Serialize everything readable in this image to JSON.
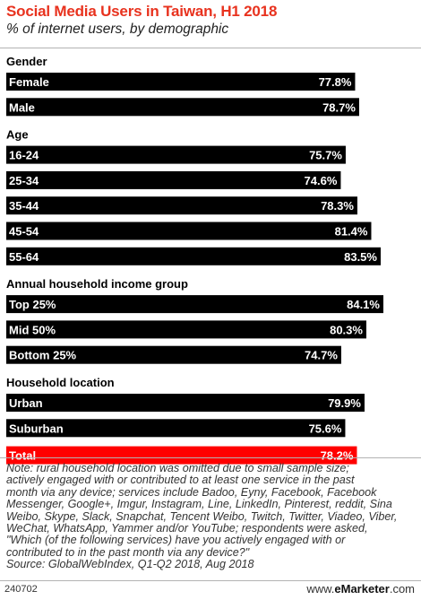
{
  "title": "Social Media Users in Taiwan, H1 2018",
  "subtitle": "% of internet users, by demographic",
  "chart_data": {
    "type": "bar",
    "orientation": "horizontal",
    "title": "Social Media Users in Taiwan, H1 2018",
    "subtitle": "% of internet users, by demographic",
    "value_unit": "%",
    "xlim": [
      0,
      85.5
    ],
    "grid": false,
    "legend": "none",
    "bar_color": "#000000",
    "highlight_color": "#ff0000",
    "groups": [
      {
        "name": "Gender",
        "items": [
          {
            "label": "Female",
            "value": 77.8,
            "display": "77.8%"
          },
          {
            "label": "Male",
            "value": 78.7,
            "display": "78.7%"
          }
        ]
      },
      {
        "name": "Age",
        "items": [
          {
            "label": "16-24",
            "value": 75.7,
            "display": "75.7%"
          },
          {
            "label": "25-34",
            "value": 74.6,
            "display": "74.6%"
          },
          {
            "label": "35-44",
            "value": 78.3,
            "display": "78.3%"
          },
          {
            "label": "45-54",
            "value": 81.4,
            "display": "81.4%"
          },
          {
            "label": "55-64",
            "value": 83.5,
            "display": "83.5%"
          }
        ]
      },
      {
        "name": "Annual household income group",
        "items": [
          {
            "label": "Top 25%",
            "value": 84.1,
            "display": "84.1%"
          },
          {
            "label": "Mid 50%",
            "value": 80.3,
            "display": "80.3%"
          },
          {
            "label": "Bottom 25%",
            "value": 74.7,
            "display": "74.7%"
          }
        ]
      },
      {
        "name": "Household location",
        "items": [
          {
            "label": "Urban",
            "value": 79.9,
            "display": "79.9%"
          },
          {
            "label": "Suburban",
            "value": 75.6,
            "display": "75.6%"
          }
        ]
      },
      {
        "name": "",
        "items": [
          {
            "label": "Total",
            "value": 78.2,
            "display": "78.2%",
            "highlight": true
          }
        ]
      }
    ]
  },
  "note_lines": [
    "Note: rural household location was omitted due to small sample size;",
    "actively engaged with or contributed to at least one service in the past",
    "month via any device; services include Badoo, Eyny, Facebook, Facebook",
    "Messenger, Google+, Imgur, Instagram, Line, LinkedIn, Pinterest, reddit, Sina",
    "Weibo, Skype, Slack, Snapchat, Tencent Weibo, Twitch, Twitter, Viadeo, Viber,",
    "WeChat, WhatsApp, Yammer and/or YouTube; respondents were asked,",
    "\"Which (of the following services) have you actively engaged with or",
    "contributed to in the past month via any device?\"",
    "Source: GlobalWebIndex, Q1-Q2 2018, Aug 2018"
  ],
  "footer": {
    "chart_id": "240702",
    "logo_prefix": "www.",
    "logo_brand": "eMarketer",
    "logo_suffix": ".com"
  }
}
